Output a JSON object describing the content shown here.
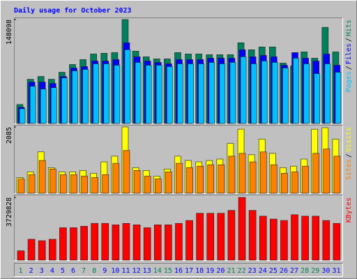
{
  "chart_data": [
    {
      "type": "bar",
      "title": "Daily usage for October 2023",
      "ylim": [
        0,
        148098
      ],
      "yticks": [
        148098
      ],
      "legend_separator": "/",
      "series": [
        {
          "name": "Hits",
          "color": "#00805c",
          "values": [
            27000,
            63000,
            67000,
            63000,
            73000,
            84000,
            91000,
            99000,
            100000,
            101000,
            148098,
            103000,
            95000,
            92000,
            92000,
            101000,
            99000,
            99000,
            98000,
            98000,
            98000,
            115000,
            105000,
            109000,
            109000,
            86000,
            82000,
            102000,
            93000,
            137000,
            102000
          ]
        },
        {
          "name": "Files",
          "color": "#0000ff",
          "values": [
            23000,
            59000,
            59000,
            57000,
            67000,
            79000,
            81000,
            89000,
            89000,
            91000,
            115000,
            95000,
            89000,
            87000,
            85000,
            91000,
            91000,
            91000,
            93000,
            93000,
            93000,
            105000,
            95000,
            97000,
            95000,
            83000,
            101000,
            93000,
            89000,
            99000,
            83000
          ]
        },
        {
          "name": "Pages",
          "color": "#00c0ff",
          "values": [
            21000,
            53000,
            49000,
            51000,
            65000,
            75000,
            77000,
            85000,
            85000,
            83000,
            105000,
            87000,
            83000,
            83000,
            81000,
            85000,
            85000,
            85000,
            87000,
            85000,
            87000,
            95000,
            85000,
            89000,
            87000,
            79000,
            93000,
            85000,
            71000,
            85000,
            73000
          ]
        }
      ]
    },
    {
      "type": "bar",
      "ylim": [
        0,
        2085
      ],
      "yticks": [
        2085
      ],
      "series": [
        {
          "name": "Visits",
          "color": "#ffff00",
          "values": [
            493,
            672,
            1300,
            806,
            672,
            672,
            717,
            627,
            986,
            1165,
            2085,
            806,
            717,
            538,
            762,
            1165,
            1030,
            986,
            1030,
            1075,
            1568,
            2016,
            1210,
            1702,
            1254,
            806,
            851,
            1075,
            2016,
            2061,
            1702
          ]
        },
        {
          "name": "Sites",
          "color": "#ff8000",
          "values": [
            448,
            582,
            1030,
            762,
            582,
            582,
            538,
            493,
            582,
            941,
            1344,
            717,
            538,
            448,
            672,
            941,
            806,
            851,
            896,
            896,
            1165,
            1254,
            986,
            1299,
            896,
            627,
            672,
            851,
            1254,
            1389,
            1165
          ]
        }
      ]
    },
    {
      "type": "bar",
      "ylim": [
        0,
        3729828
      ],
      "yticks": [
        3729828
      ],
      "categories": [
        "1",
        "2",
        "3",
        "4",
        "5",
        "6",
        "7",
        "8",
        "9",
        "10",
        "11",
        "12",
        "13",
        "14",
        "15",
        "16",
        "17",
        "18",
        "19",
        "20",
        "21",
        "22",
        "23",
        "24",
        "25",
        "26",
        "27",
        "28",
        "29",
        "30",
        "31"
      ],
      "category_colors": [
        "#00805c",
        "#0000ff",
        "#0000ff",
        "#0000ff",
        "#0000ff",
        "#0000ff",
        "#00805c",
        "#00805c",
        "#0000ff",
        "#0000ff",
        "#0000ff",
        "#0000ff",
        "#0000ff",
        "#00805c",
        "#00805c",
        "#0000ff",
        "#0000ff",
        "#0000ff",
        "#0000ff",
        "#0000ff",
        "#00805c",
        "#00805c",
        "#0000ff",
        "#0000ff",
        "#0000ff",
        "#0000ff",
        "#0000ff",
        "#00805c",
        "#00805c",
        "#0000ff",
        "#0000ff"
      ],
      "series": [
        {
          "name": "KBytes",
          "color": "#ff0000",
          "values": [
            557000,
            1243000,
            1157000,
            1243000,
            1929000,
            1929000,
            2015000,
            2186000,
            2186000,
            2100000,
            2186000,
            2100000,
            1929000,
            2100000,
            2100000,
            2186000,
            2358000,
            2787000,
            2787000,
            2787000,
            2958000,
            3729828,
            2958000,
            2615000,
            2444000,
            2358000,
            2701000,
            2615000,
            2615000,
            2358000,
            2186000
          ]
        }
      ]
    }
  ]
}
